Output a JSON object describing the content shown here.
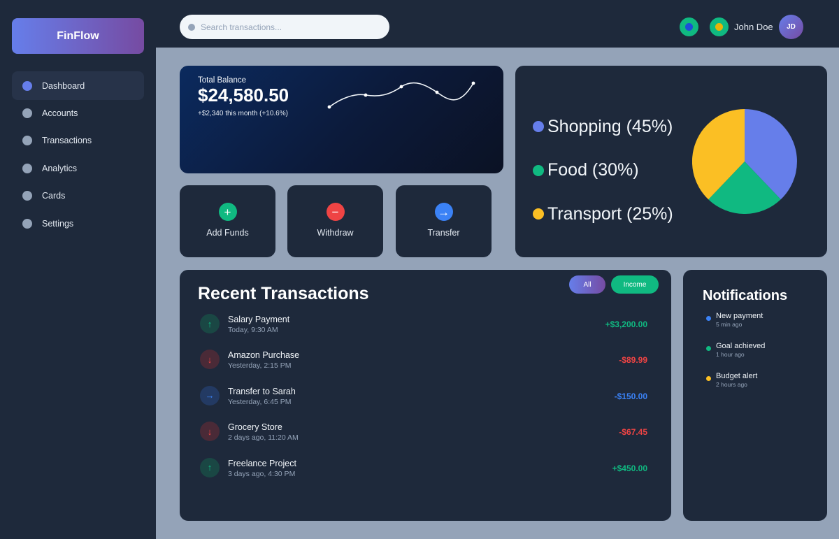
{
  "app": {
    "brand": "FinFlow"
  },
  "sidebar": {
    "items": [
      {
        "label": "Dashboard",
        "active": true
      },
      {
        "label": "Accounts"
      },
      {
        "label": "Transactions"
      },
      {
        "label": "Analytics"
      },
      {
        "label": "Cards"
      },
      {
        "label": "Settings"
      }
    ]
  },
  "topbar": {
    "search_placeholder": "Search transactions...",
    "icons": [
      {
        "name": "notification-icon",
        "color": "#1d4ed8"
      },
      {
        "name": "message-icon",
        "color": "#eab308"
      }
    ],
    "user_name": "John Doe",
    "avatar_initials": "JD"
  },
  "balance": {
    "label": "Total Balance",
    "value": "$24,580.50",
    "change": "+$2,340 this month (+10.6%)"
  },
  "actions": [
    {
      "label": "Add Funds",
      "glyph": "+",
      "color": "#10b981",
      "icon": "plus-icon"
    },
    {
      "label": "Withdraw",
      "glyph": "−",
      "color": "#ef4444",
      "icon": "minus-icon"
    },
    {
      "label": "Transfer",
      "glyph": "→",
      "color": "#3b82f6",
      "icon": "arrow-right-icon"
    }
  ],
  "spending": {
    "colors": {
      "Shopping": "#667eea",
      "Food": "#10b981",
      "Transport": "#fbbf24"
    },
    "legend": [
      {
        "label": "Shopping (45%)",
        "color": "#667eea"
      },
      {
        "label": "Food (30%)",
        "color": "#10b981"
      },
      {
        "label": "Transport (25%)",
        "color": "#fbbf24"
      }
    ]
  },
  "transactions": {
    "title": "Recent Transactions",
    "filters": {
      "all": "All",
      "income": "Income"
    },
    "items": [
      {
        "name": "Salary Payment",
        "time": "Today, 9:30 AM",
        "amount": "+$3,200.00",
        "type": "income"
      },
      {
        "name": "Amazon Purchase",
        "time": "Yesterday, 2:15 PM",
        "amount": "-$89.99",
        "type": "expense"
      },
      {
        "name": "Transfer to Sarah",
        "time": "Yesterday, 6:45 PM",
        "amount": "-$150.00",
        "type": "transfer"
      },
      {
        "name": "Grocery Store",
        "time": "2 days ago, 11:20 AM",
        "amount": "-$67.45",
        "type": "expense"
      },
      {
        "name": "Freelance Project",
        "time": "3 days ago, 4:30 PM",
        "amount": "+$450.00",
        "type": "income"
      }
    ],
    "type_styles": {
      "income": {
        "glyph": "↑",
        "fg": "#10b981",
        "bg": "#1a4744",
        "icon": "arrow-up-icon"
      },
      "expense": {
        "glyph": "↓",
        "fg": "#ef4444",
        "bg": "#4a2a37",
        "icon": "arrow-down-icon"
      },
      "transfer": {
        "glyph": "→",
        "fg": "#3b82f6",
        "bg": "#233a63",
        "icon": "arrow-right-icon"
      }
    }
  },
  "notifications": {
    "title": "Notifications",
    "items": [
      {
        "text": "New payment",
        "time": "5 min ago",
        "color": "#3b82f6"
      },
      {
        "text": "Goal achieved",
        "time": "1 hour ago",
        "color": "#10b981"
      },
      {
        "text": "Budget alert",
        "time": "2 hours ago",
        "color": "#fbbf24"
      }
    ]
  }
}
